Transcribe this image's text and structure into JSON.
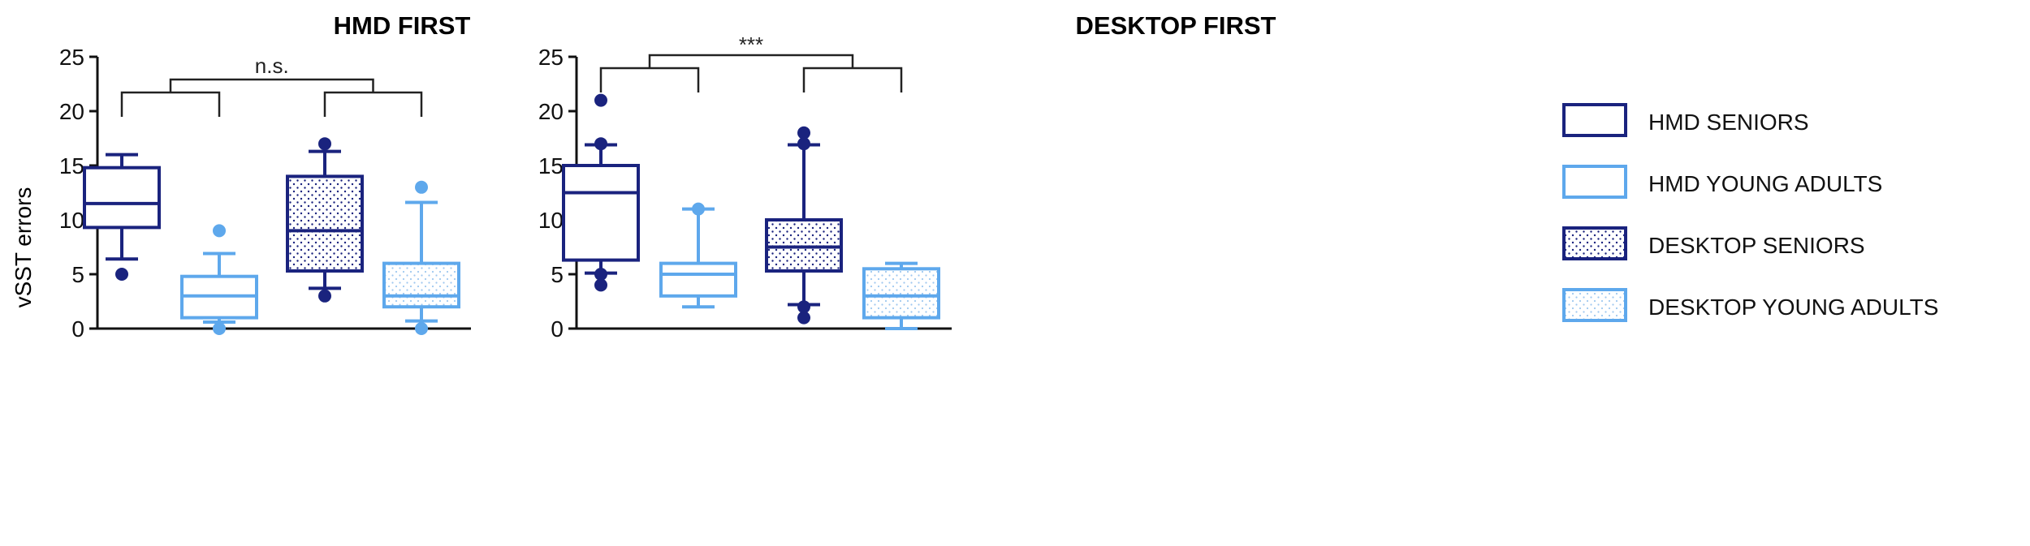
{
  "colors": {
    "seniors": "#1a237e",
    "young": "#5ea8ec",
    "bracket": "#222222",
    "axis": "#111111"
  },
  "chart_data": [
    {
      "type": "box",
      "title": "HMD FIRST",
      "ylabel": "vSST errors",
      "ylim": [
        0,
        25
      ],
      "yticks": [
        0,
        5,
        10,
        15,
        20,
        25
      ],
      "significance": "n.s.",
      "boxes": [
        {
          "group": "HMD SENIORS",
          "whisker_low": 6.4,
          "q1": 9.3,
          "median": 11.5,
          "q3": 14.8,
          "whisker_high": 16,
          "outliers": [
            5
          ]
        },
        {
          "group": "HMD YOUNG ADULTS",
          "whisker_low": 0.6,
          "q1": 1,
          "median": 3,
          "q3": 4.8,
          "whisker_high": 6.9,
          "outliers": [
            0,
            9
          ]
        },
        {
          "group": "DESKTOP SENIORS",
          "whisker_low": 3.7,
          "q1": 5.3,
          "median": 9,
          "q3": 14,
          "whisker_high": 16.3,
          "outliers": [
            3,
            17
          ]
        },
        {
          "group": "DESKTOP YOUNG ADULTS",
          "whisker_low": 0.7,
          "q1": 2,
          "median": 3,
          "q3": 6,
          "whisker_high": 11.6,
          "outliers": [
            0,
            13
          ]
        }
      ]
    },
    {
      "type": "box",
      "title": "DESKTOP FIRST",
      "ylabel": "",
      "ylim": [
        0,
        25
      ],
      "yticks": [
        0,
        5,
        10,
        15,
        20,
        25
      ],
      "significance": "***",
      "boxes": [
        {
          "group": "HMD SENIORS",
          "whisker_low": 5.1,
          "q1": 6.3,
          "median": 12.5,
          "q3": 15,
          "whisker_high": 16.9,
          "outliers": [
            4,
            5,
            17,
            21
          ]
        },
        {
          "group": "HMD YOUNG ADULTS",
          "whisker_low": 2,
          "q1": 3,
          "median": 5,
          "q3": 6,
          "whisker_high": 11,
          "outliers": [
            11
          ]
        },
        {
          "group": "DESKTOP SENIORS",
          "whisker_low": 2.2,
          "q1": 5.3,
          "median": 7.5,
          "q3": 10,
          "whisker_high": 16.9,
          "outliers": [
            1,
            2,
            17,
            18
          ]
        },
        {
          "group": "DESKTOP YOUNG ADULTS",
          "whisker_low": 0,
          "q1": 1,
          "median": 3,
          "q3": 5.5,
          "whisker_high": 6,
          "outliers": []
        }
      ]
    }
  ],
  "legend": {
    "items": [
      {
        "label": "HMD SENIORS",
        "color": "seniors",
        "pattern": "none"
      },
      {
        "label": "HMD YOUNG ADULTS",
        "color": "young",
        "pattern": "none"
      },
      {
        "label": "DESKTOP SENIORS",
        "color": "seniors",
        "pattern": "dots"
      },
      {
        "label": "DESKTOP YOUNG ADULTS",
        "color": "young",
        "pattern": "dots"
      }
    ]
  }
}
